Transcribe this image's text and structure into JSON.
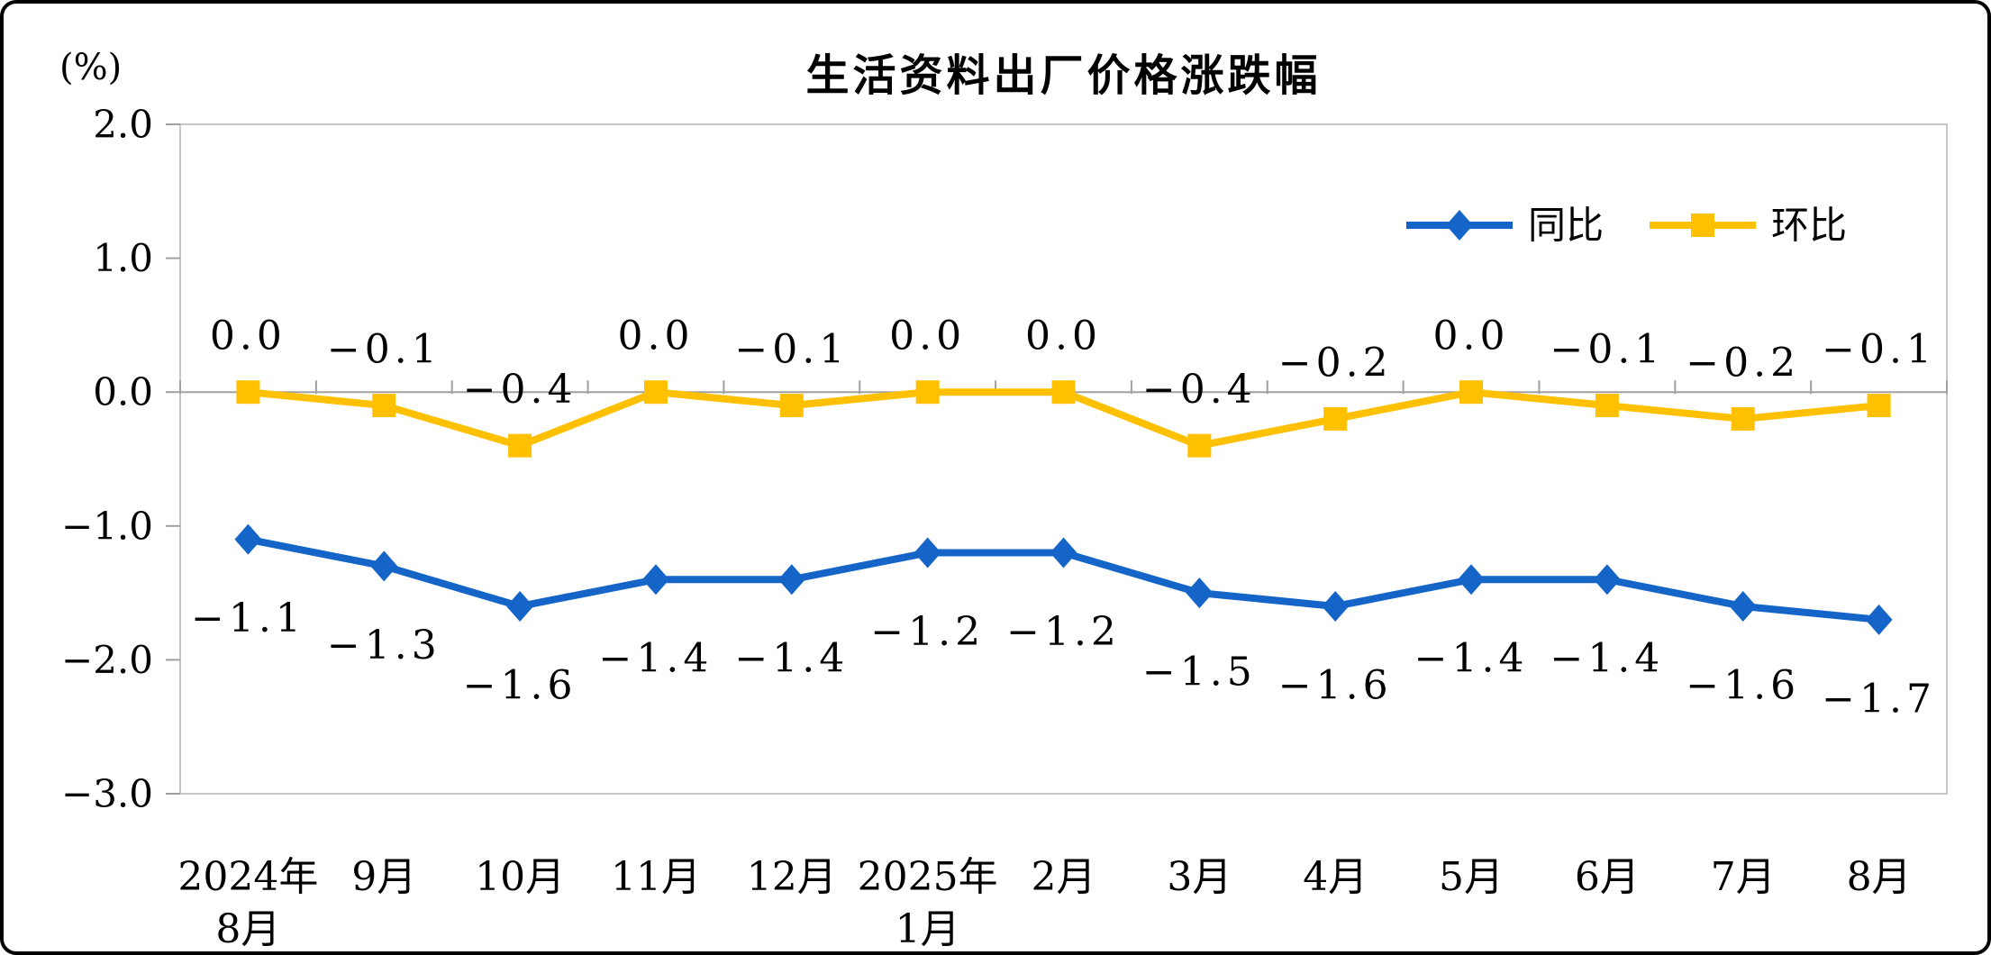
{
  "chart_data": {
    "type": "line",
    "title": "生活资料出厂价格涨跌幅",
    "unit_label": "(%)",
    "categories": [
      [
        "2024年",
        "8月"
      ],
      [
        "9月"
      ],
      [
        "10月"
      ],
      [
        "11月"
      ],
      [
        "12月"
      ],
      [
        "2025年",
        "1月"
      ],
      [
        "2月"
      ],
      [
        "3月"
      ],
      [
        "4月"
      ],
      [
        "5月"
      ],
      [
        "6月"
      ],
      [
        "7月"
      ],
      [
        "8月"
      ]
    ],
    "y_axis": {
      "min": -3.0,
      "max": 2.0,
      "step": 1.0,
      "tick_labels": [
        "2.0",
        "1.0",
        "0.0",
        "−1.0",
        "−2.0",
        "−3.0"
      ]
    },
    "series": [
      {
        "name": "同比",
        "color": "#1565C8",
        "marker": "diamond",
        "data_label_position": "below",
        "values": [
          -1.1,
          -1.3,
          -1.6,
          -1.4,
          -1.4,
          -1.2,
          -1.2,
          -1.5,
          -1.6,
          -1.4,
          -1.4,
          -1.6,
          -1.7
        ],
        "labels": [
          "−1.1",
          "−1.3",
          "−1.6",
          "−1.4",
          "−1.4",
          "−1.2",
          "−1.2",
          "−1.5",
          "−1.6",
          "−1.4",
          "−1.4",
          "−1.6",
          "−1.7"
        ]
      },
      {
        "name": "环比",
        "color": "#FFC000",
        "marker": "square",
        "data_label_position": "above",
        "values": [
          0.0,
          -0.1,
          -0.4,
          0.0,
          -0.1,
          0.0,
          0.0,
          -0.4,
          -0.2,
          0.0,
          -0.1,
          -0.2,
          -0.1
        ],
        "labels": [
          "0.0",
          "−0.1",
          "−0.4",
          "0.0",
          "−0.1",
          "0.0",
          "0.0",
          "−0.4",
          "−0.2",
          "0.0",
          "−0.1",
          "−0.2",
          "−0.1"
        ]
      }
    ],
    "grid": "zero-line-only",
    "legend_position": "top-right-inside",
    "axis_color": "#A0A0A0",
    "border_color": "#C6C6C6",
    "text_color": "#000000"
  }
}
